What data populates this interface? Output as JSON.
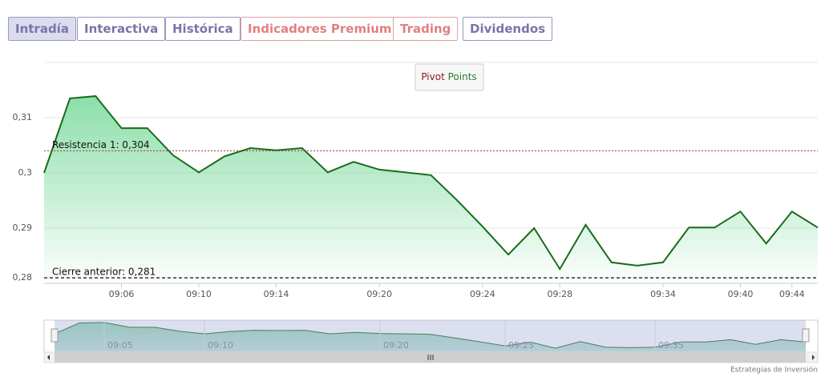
{
  "tabs": [
    "Intradía",
    "Interactiva",
    "Histórica",
    "Indicadores Premium",
    "Trading",
    "Dividendos"
  ],
  "pivot_button": [
    "Pivot",
    "Points"
  ],
  "chart_data": {
    "type": "area",
    "categories": [
      null,
      null,
      null,
      "09:06",
      null,
      null,
      "09:10",
      null,
      null,
      "09:14",
      null,
      null,
      null,
      "09:20",
      null,
      null,
      null,
      "09:24",
      null,
      null,
      "09:28",
      null,
      null,
      null,
      "09:34",
      null,
      null,
      "09:40",
      null,
      "09:44",
      null
    ],
    "values": [
      0.3,
      0.3135,
      0.3139,
      0.3081,
      0.3081,
      0.3032,
      0.3001,
      0.303,
      0.3045,
      0.3041,
      0.3045,
      0.3001,
      0.302,
      0.3006,
      0.3001,
      0.2996,
      0.2951,
      0.2903,
      0.2852,
      0.29,
      0.2826,
      0.2906,
      0.2838,
      0.2832,
      0.2838,
      0.2901,
      0.2901,
      0.293,
      0.2872,
      0.293,
      0.2901
    ],
    "color": "#1a6b1a",
    "ylim": [
      0.28,
      0.32
    ],
    "yticks": [
      {
        "value": 0.28,
        "label": "0,28"
      },
      {
        "value": 0.29,
        "label": "0,29"
      },
      {
        "value": 0.3,
        "label": "0,3"
      },
      {
        "value": 0.31,
        "label": "0,31"
      }
    ],
    "grid": true,
    "annotations": [
      {
        "label": "Resistencia 1: 0,304",
        "value": 0.304
      },
      {
        "label": "Cierre anterior: 0,281",
        "value": 0.281
      }
    ],
    "navigator_labels": [
      "09:05",
      "09:10",
      "09:20",
      "09:25",
      "09:35"
    ]
  },
  "footer": "Estrategias de Inversión"
}
